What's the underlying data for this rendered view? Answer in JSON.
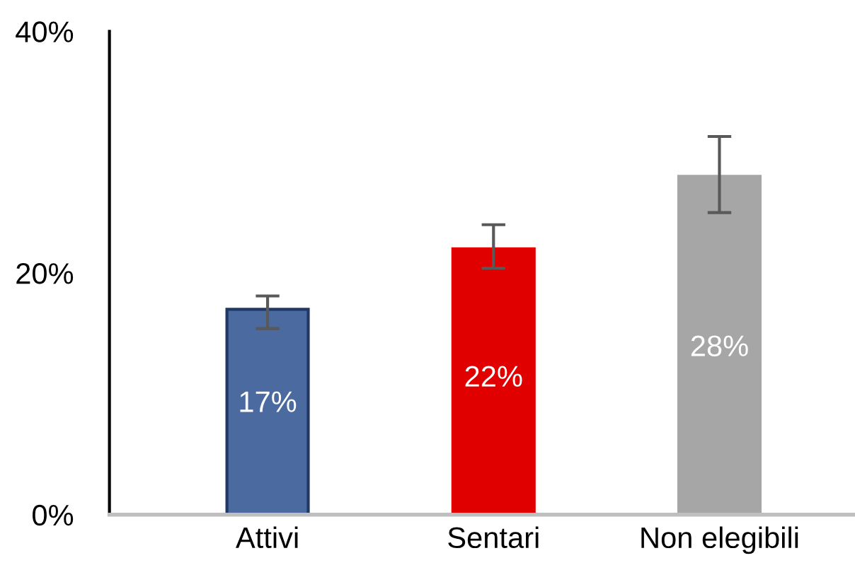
{
  "chart_data": {
    "type": "bar",
    "categories": [
      "Attivi",
      "Sentari",
      "Non elegibili"
    ],
    "values": [
      17,
      22,
      28
    ],
    "colors": [
      "#4a6aa0",
      "#e00000",
      "#a6a6a6"
    ],
    "errors": [
      [
        15.4,
        18.1
      ],
      [
        20.4,
        24.0
      ],
      [
        25.0,
        31.3
      ]
    ],
    "value_labels": [
      "17%",
      "22%",
      "28%"
    ],
    "ylim": [
      0,
      40
    ],
    "yticks": [
      {
        "value": 0,
        "label": "0%"
      },
      {
        "value": 20,
        "label": "20%"
      },
      {
        "value": 40,
        "label": "40%"
      }
    ],
    "grid": false,
    "legend": false
  }
}
